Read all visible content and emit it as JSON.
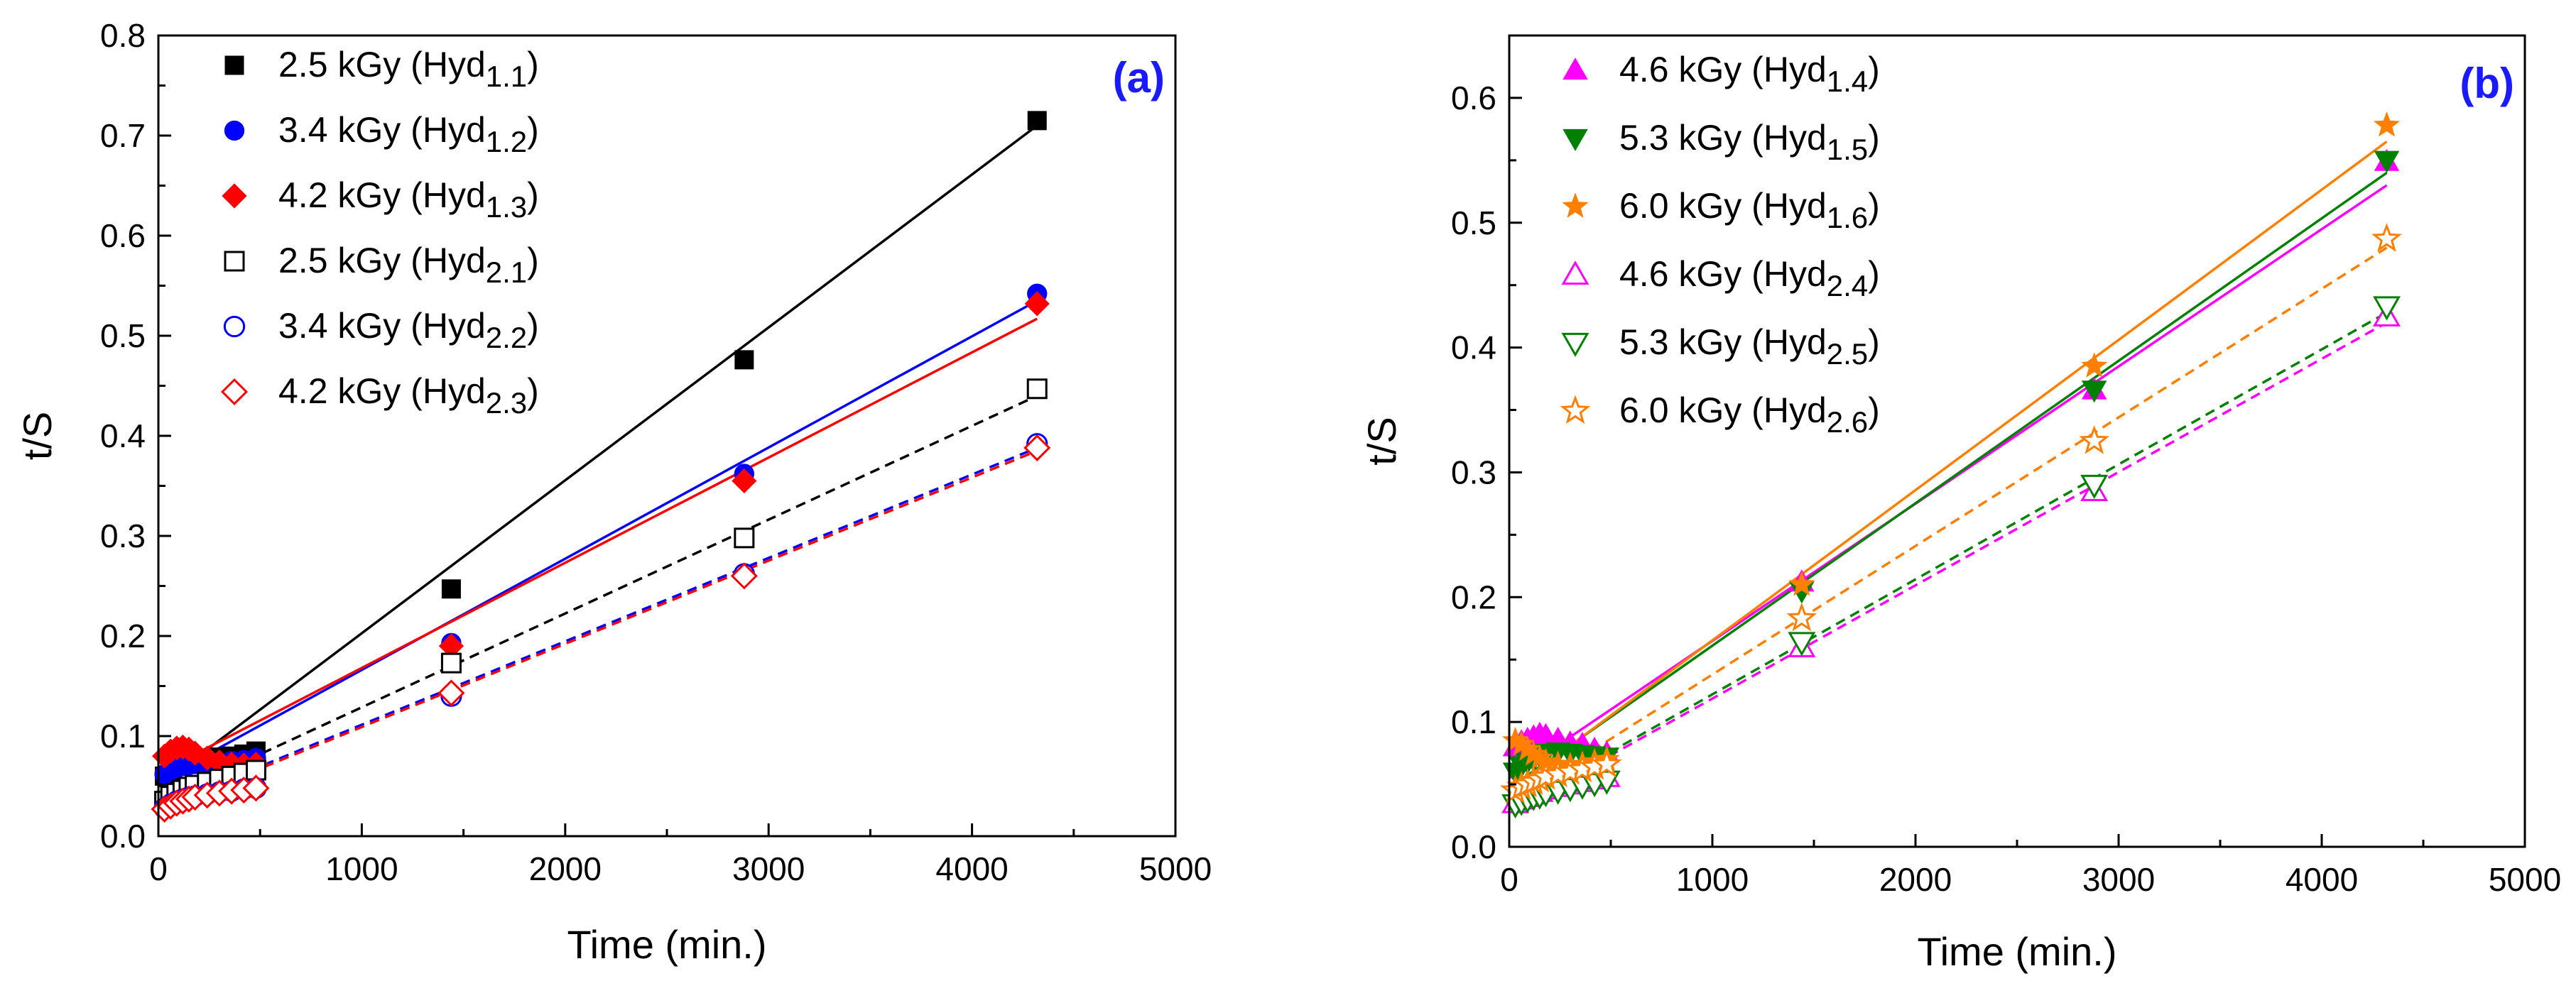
{
  "chart_data": [
    {
      "type": "scatter",
      "panel_label": "(a)",
      "xlabel": "Time (min.)",
      "ylabel": "t/S",
      "xlim": [
        0,
        5000
      ],
      "ylim": [
        0,
        0.8
      ],
      "xticks": [
        "0",
        "1000",
        "2000",
        "3000",
        "4000",
        "5000"
      ],
      "yticks": [
        "0.0",
        "0.1",
        "0.2",
        "0.3",
        "0.4",
        "0.5",
        "0.6",
        "0.7",
        "0.8"
      ],
      "legend_position": "top-left",
      "series": [
        {
          "name": "2.5 kGy (Hyd",
          "sub": "1.1",
          "close": ")",
          "marker": "square",
          "filled": true,
          "color": "#000000",
          "dash": false,
          "x": [
            30,
            60,
            90,
            120,
            150,
            180,
            240,
            300,
            360,
            420,
            480,
            1440,
            2880,
            4320
          ],
          "y": [
            0.06,
            0.065,
            0.07,
            0.073,
            0.075,
            0.076,
            0.078,
            0.079,
            0.08,
            0.082,
            0.085,
            0.247,
            0.476,
            0.715
          ],
          "fit": [
            [
              0,
              0.05
            ],
            [
              4320,
              0.71
            ]
          ]
        },
        {
          "name": "3.4 kGy (Hyd",
          "sub": "1.2",
          "close": ")",
          "marker": "circle",
          "filled": true,
          "color": "#0000ff",
          "dash": false,
          "x": [
            30,
            60,
            90,
            120,
            150,
            180,
            240,
            300,
            360,
            420,
            480,
            1440,
            2880,
            4320
          ],
          "y": [
            0.062,
            0.066,
            0.068,
            0.07,
            0.071,
            0.072,
            0.073,
            0.074,
            0.075,
            0.076,
            0.078,
            0.193,
            0.362,
            0.542
          ],
          "fit": [
            [
              0,
              0.055
            ],
            [
              4320,
              0.535
            ]
          ]
        },
        {
          "name": "4.2 kGy (Hyd",
          "sub": "1.3",
          "close": ")",
          "marker": "diamond",
          "filled": true,
          "color": "#ff0000",
          "dash": false,
          "x": [
            30,
            60,
            90,
            120,
            150,
            180,
            240,
            300,
            360,
            420,
            480,
            1440,
            2880,
            4320
          ],
          "y": [
            0.08,
            0.085,
            0.088,
            0.089,
            0.087,
            0.083,
            0.078,
            0.074,
            0.072,
            0.071,
            0.072,
            0.19,
            0.355,
            0.532
          ],
          "fit": [
            [
              0,
              0.063
            ],
            [
              4320,
              0.517
            ]
          ]
        },
        {
          "name": "2.5 kGy (Hyd",
          "sub": "2.1",
          "close": ")",
          "marker": "square",
          "filled": false,
          "color": "#000000",
          "dash": true,
          "x": [
            30,
            60,
            90,
            120,
            150,
            180,
            240,
            300,
            360,
            420,
            480,
            1440,
            2880,
            4320
          ],
          "y": [
            0.035,
            0.04,
            0.043,
            0.046,
            0.049,
            0.051,
            0.054,
            0.057,
            0.06,
            0.063,
            0.066,
            0.173,
            0.298,
            0.447
          ],
          "fit": [
            [
              0,
              0.035
            ],
            [
              4320,
              0.44
            ]
          ]
        },
        {
          "name": "3.4 kGy (Hyd",
          "sub": "2.2",
          "close": ")",
          "marker": "circle",
          "filled": false,
          "color": "#0000ff",
          "dash": true,
          "x": [
            30,
            60,
            90,
            120,
            150,
            180,
            240,
            300,
            360,
            420,
            480,
            1440,
            2880,
            4320
          ],
          "y": [
            0.028,
            0.032,
            0.035,
            0.037,
            0.039,
            0.04,
            0.042,
            0.044,
            0.045,
            0.047,
            0.048,
            0.14,
            0.262,
            0.392
          ],
          "fit": [
            [
              0,
              0.028
            ],
            [
              4320,
              0.388
            ]
          ]
        },
        {
          "name": "4.2 kGy (Hyd",
          "sub": "2.3",
          "close": ")",
          "marker": "diamond",
          "filled": false,
          "color": "#ff0000",
          "dash": true,
          "x": [
            30,
            60,
            90,
            120,
            150,
            180,
            240,
            300,
            360,
            420,
            480,
            1440,
            2880,
            4320
          ],
          "y": [
            0.027,
            0.03,
            0.033,
            0.035,
            0.037,
            0.039,
            0.041,
            0.043,
            0.045,
            0.046,
            0.048,
            0.143,
            0.26,
            0.388
          ],
          "fit": [
            [
              0,
              0.026
            ],
            [
              4320,
              0.385
            ]
          ]
        }
      ]
    },
    {
      "type": "scatter",
      "panel_label": "(b)",
      "xlabel": "Time (min.)",
      "ylabel": "t/S",
      "xlim": [
        0,
        5000
      ],
      "ylim": [
        0,
        0.65
      ],
      "xticks": [
        "0",
        "1000",
        "2000",
        "3000",
        "4000",
        "5000"
      ],
      "yticks": [
        "0.0",
        "0.1",
        "0.2",
        "0.3",
        "0.4",
        "0.5",
        "0.6"
      ],
      "legend_position": "top-left",
      "series": [
        {
          "name": "4.6 kGy (Hyd",
          "sub": "1.4",
          "close": ")",
          "marker": "triangle-up",
          "filled": true,
          "color": "#ff00ff",
          "dash": false,
          "x": [
            30,
            60,
            90,
            120,
            150,
            180,
            240,
            300,
            360,
            420,
            480,
            1440,
            2880,
            4320
          ],
          "y": [
            0.08,
            0.084,
            0.086,
            0.088,
            0.09,
            0.089,
            0.086,
            0.083,
            0.082,
            0.078,
            0.075,
            0.212,
            0.366,
            0.549
          ],
          "fit": [
            [
              0,
              0.055
            ],
            [
              4320,
              0.53
            ]
          ]
        },
        {
          "name": "5.3 kGy (Hyd",
          "sub": "1.5",
          "close": ")",
          "marker": "triangle-down",
          "filled": true,
          "color": "#008000",
          "dash": false,
          "x": [
            30,
            60,
            90,
            120,
            150,
            180,
            240,
            300,
            360,
            420,
            480,
            1440,
            2880,
            4320
          ],
          "y": [
            0.06,
            0.065,
            0.068,
            0.07,
            0.073,
            0.075,
            0.076,
            0.075,
            0.074,
            0.073,
            0.072,
            0.205,
            0.366,
            0.55
          ],
          "fit": [
            [
              0,
              0.047
            ],
            [
              4320,
              0.54
            ]
          ]
        },
        {
          "name": "6.0 kGy (Hyd",
          "sub": "1.6",
          "close": ")",
          "marker": "star",
          "filled": true,
          "color": "#ff8000",
          "dash": false,
          "x": [
            30,
            60,
            90,
            120,
            150,
            180,
            240,
            300,
            360,
            420,
            480,
            1440,
            2880,
            4320
          ],
          "y": [
            0.085,
            0.082,
            0.078,
            0.074,
            0.071,
            0.068,
            0.066,
            0.065,
            0.066,
            0.068,
            0.07,
            0.21,
            0.385,
            0.578
          ],
          "fit": [
            [
              0,
              0.045
            ],
            [
              4320,
              0.565
            ]
          ]
        },
        {
          "name": "4.6 kGy (Hyd",
          "sub": "2.4",
          "close": ")",
          "marker": "triangle-up",
          "filled": false,
          "color": "#ff00ff",
          "dash": true,
          "x": [
            30,
            60,
            90,
            120,
            150,
            180,
            240,
            300,
            360,
            420,
            480,
            1440,
            2880,
            4320
          ],
          "y": [
            0.035,
            0.038,
            0.04,
            0.042,
            0.044,
            0.046,
            0.048,
            0.05,
            0.052,
            0.054,
            0.056,
            0.16,
            0.285,
            0.425
          ],
          "fit": [
            [
              0,
              0.028
            ],
            [
              4320,
              0.42
            ]
          ]
        },
        {
          "name": "5.3 kGy (Hyd",
          "sub": "2.5",
          "close": ")",
          "marker": "triangle-down",
          "filled": false,
          "color": "#008000",
          "dash": true,
          "x": [
            30,
            60,
            90,
            120,
            150,
            180,
            240,
            300,
            360,
            420,
            480,
            1440,
            2880,
            4320
          ],
          "y": [
            0.034,
            0.036,
            0.038,
            0.04,
            0.041,
            0.043,
            0.045,
            0.047,
            0.049,
            0.051,
            0.053,
            0.164,
            0.29,
            0.433
          ],
          "fit": [
            [
              0,
              0.03
            ],
            [
              4320,
              0.428
            ]
          ]
        },
        {
          "name": "6.0 kGy (Hyd",
          "sub": "2.6",
          "close": ")",
          "marker": "star",
          "filled": false,
          "color": "#ff8000",
          "dash": true,
          "x": [
            30,
            60,
            90,
            120,
            150,
            180,
            240,
            300,
            360,
            420,
            480,
            1440,
            2880,
            4320
          ],
          "y": [
            0.045,
            0.048,
            0.05,
            0.052,
            0.054,
            0.056,
            0.058,
            0.06,
            0.062,
            0.064,
            0.066,
            0.183,
            0.325,
            0.487
          ],
          "fit": [
            [
              0,
              0.035
            ],
            [
              4320,
              0.48
            ]
          ]
        }
      ]
    }
  ]
}
